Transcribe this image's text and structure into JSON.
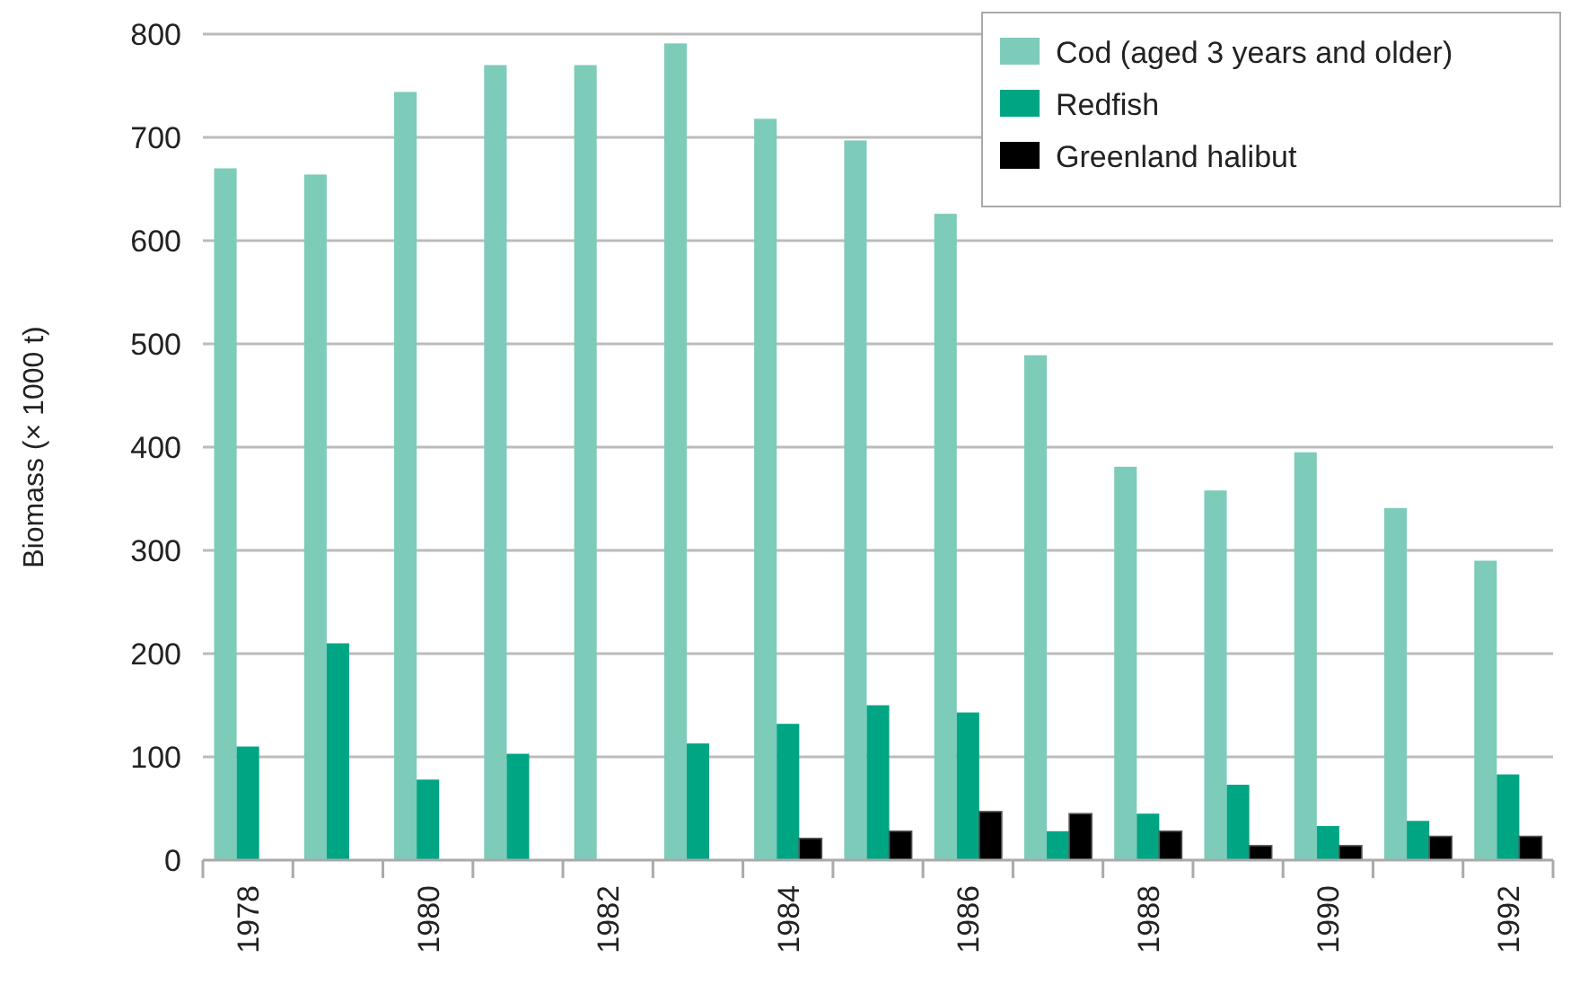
{
  "chart_data": {
    "type": "bar",
    "ylabel": "Biomass (× 1000 t)",
    "categories": [
      "1978",
      null,
      "1980",
      null,
      "1982",
      null,
      "1984",
      null,
      "1986",
      null,
      "1988",
      null,
      "1990",
      null,
      "1992"
    ],
    "series": [
      {
        "name": "Cod (aged 3 years and older)",
        "color": "#7dcbb9",
        "values": [
          670,
          664,
          744,
          770,
          770,
          791,
          718,
          697,
          626,
          489,
          381,
          358,
          395,
          341,
          290
        ]
      },
      {
        "name": "Redfish",
        "color": "#00a584",
        "values": [
          110,
          210,
          78,
          103,
          null,
          113,
          132,
          150,
          143,
          28,
          45,
          73,
          33,
          38,
          83
        ]
      },
      {
        "name": "Greenland halibut",
        "color": "#000000",
        "values": [
          null,
          null,
          null,
          null,
          null,
          null,
          21,
          28,
          47,
          45,
          28,
          14,
          14,
          23,
          23
        ]
      }
    ],
    "ylim": [
      0,
      800
    ],
    "yticks": [
      0,
      100,
      200,
      300,
      400,
      500,
      600,
      700,
      800
    ],
    "grid": "y",
    "legend": "top right"
  }
}
